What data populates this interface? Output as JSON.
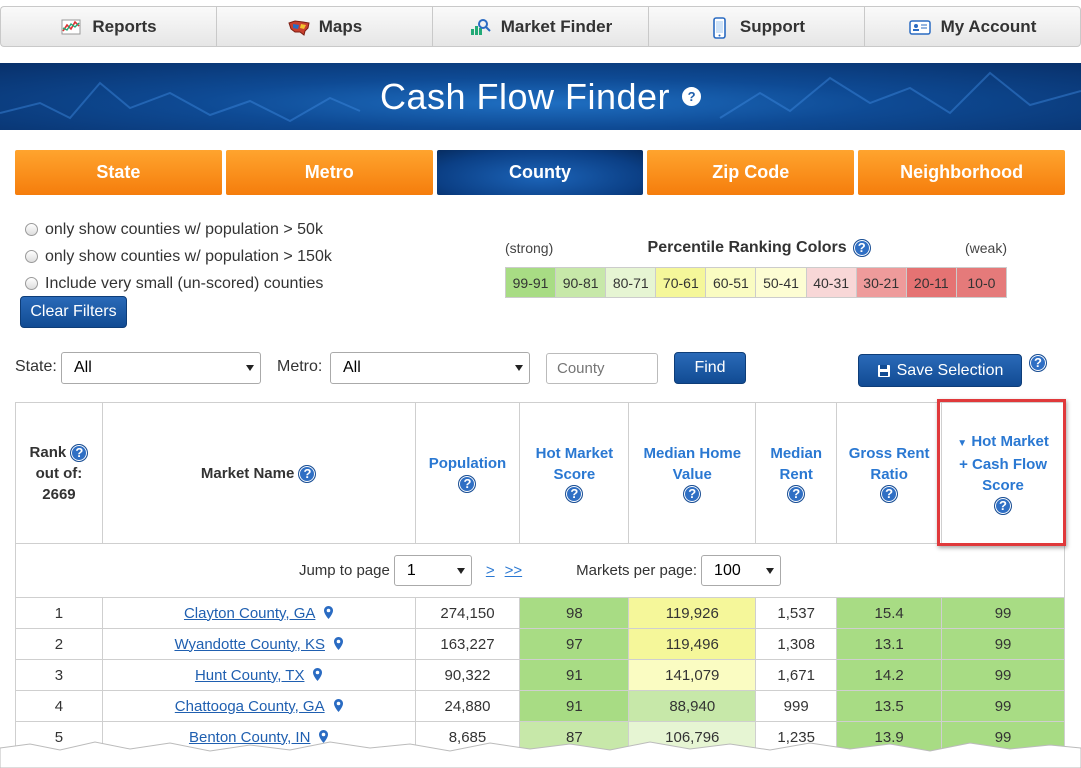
{
  "nav": {
    "items": [
      {
        "label": "Reports",
        "icon": "chart-icon"
      },
      {
        "label": "Maps",
        "icon": "usa-map-icon"
      },
      {
        "label": "Market Finder",
        "icon": "market-search-icon"
      },
      {
        "label": "Support",
        "icon": "phone-icon"
      },
      {
        "label": "My Account",
        "icon": "id-card-icon"
      }
    ]
  },
  "banner": {
    "title": "Cash Flow Finder",
    "help": "?"
  },
  "tabs": [
    "State",
    "Metro",
    "County",
    "Zip Code",
    "Neighborhood"
  ],
  "active_tab": "County",
  "filters": {
    "options": [
      "only show counties w/ population > 50k",
      "only show counties w/ population > 150k",
      "Include very small (un-scored) counties"
    ],
    "clear_label": "Clear Filters"
  },
  "legend": {
    "strong": "(strong)",
    "title": "Percentile Ranking Colors",
    "weak": "(weak)",
    "buckets": [
      {
        "label": "99-91",
        "color": "#a8dc84"
      },
      {
        "label": "90-81",
        "color": "#c7e8a9"
      },
      {
        "label": "80-71",
        "color": "#e6f5d3"
      },
      {
        "label": "70-61",
        "color": "#f5f79a"
      },
      {
        "label": "60-51",
        "color": "#fafcc2"
      },
      {
        "label": "50-41",
        "color": "#fdfdd3"
      },
      {
        "label": "40-31",
        "color": "#f8d7d7"
      },
      {
        "label": "30-21",
        "color": "#ee9b9b"
      },
      {
        "label": "20-11",
        "color": "#e57373"
      },
      {
        "label": "10-0",
        "color": "#e57a7a"
      }
    ]
  },
  "search": {
    "state_label": "State:",
    "state_value": "All",
    "metro_label": "Metro:",
    "metro_value": "All",
    "county_placeholder": "County",
    "find_label": "Find",
    "save_label": "Save Selection"
  },
  "table": {
    "headers": {
      "rank_line1": "Rank",
      "rank_line2": "out of:",
      "rank_total": "2669",
      "market_name": "Market Name",
      "population": "Population",
      "hot_market_1": "Hot Market",
      "hot_market_2": "Score",
      "home_value_1": "Median Home",
      "home_value_2": "Value",
      "rent_1": "Median",
      "rent_2": "Rent",
      "grr_1": "Gross Rent",
      "grr_2": "Ratio",
      "cashflow_1": "Hot Market",
      "cashflow_2": "+ Cash Flow",
      "cashflow_3": "Score"
    },
    "pager": {
      "jump_label": "Jump to page",
      "page_value": "1",
      "next": ">",
      "last": ">>",
      "per_page_label": "Markets per page:",
      "per_page_value": "100"
    },
    "rows": [
      {
        "rank": "1",
        "name": "Clayton County, GA",
        "population": "274,150",
        "hot": "98",
        "home": "119,926",
        "rent": "1,537",
        "grr": "15.4",
        "cf": "99",
        "hot_color": "#a8dc84",
        "home_color": "#f5f79a",
        "grr_color": "#a8dc84",
        "cf_color": "#a8dc84"
      },
      {
        "rank": "2",
        "name": "Wyandotte County, KS",
        "population": "163,227",
        "hot": "97",
        "home": "119,496",
        "rent": "1,308",
        "grr": "13.1",
        "cf": "99",
        "hot_color": "#a8dc84",
        "home_color": "#f5f79a",
        "grr_color": "#a8dc84",
        "cf_color": "#a8dc84"
      },
      {
        "rank": "3",
        "name": "Hunt County, TX",
        "population": "90,322",
        "hot": "91",
        "home": "141,079",
        "rent": "1,671",
        "grr": "14.2",
        "cf": "99",
        "hot_color": "#a8dc84",
        "home_color": "#fafcc2",
        "grr_color": "#a8dc84",
        "cf_color": "#a8dc84"
      },
      {
        "rank": "4",
        "name": "Chattooga County, GA",
        "population": "24,880",
        "hot": "91",
        "home": "88,940",
        "rent": "999",
        "grr": "13.5",
        "cf": "99",
        "hot_color": "#a8dc84",
        "home_color": "#c7e8a9",
        "grr_color": "#a8dc84",
        "cf_color": "#a8dc84"
      },
      {
        "rank": "5",
        "name": "Benton County, IN",
        "population": "8,685",
        "hot": "87",
        "home": "106,796",
        "rent": "1,235",
        "grr": "13.9",
        "cf": "99",
        "hot_color": "#c7e8a9",
        "home_color": "#e6f5d3",
        "grr_color": "#a8dc84",
        "cf_color": "#a8dc84"
      }
    ]
  }
}
